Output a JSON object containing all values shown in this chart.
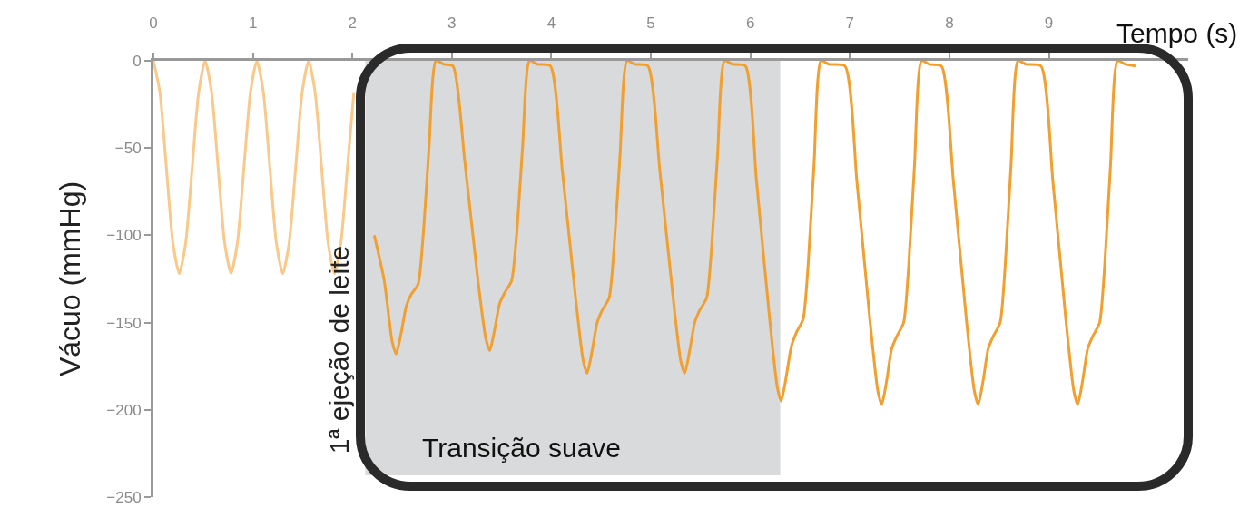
{
  "chart_data": {
    "type": "line",
    "xlabel": "Tempo (s)",
    "ylabel": "Vácuo (mmHg)",
    "xlim": [
      0,
      10.4
    ],
    "xticks": [
      0,
      1,
      2,
      3,
      4,
      5,
      6,
      7,
      8,
      9
    ],
    "ylim": [
      -250,
      0
    ],
    "yticks": [
      0,
      {
        "value": -50,
        "label": "−50"
      },
      {
        "value": -100,
        "label": "−100"
      },
      {
        "value": -150,
        "label": "−150"
      },
      {
        "value": -200,
        "label": "−200"
      },
      {
        "value": -250,
        "label": "−250"
      }
    ],
    "grid": false,
    "marker": "none",
    "line_style": "solid",
    "bands": [
      {
        "axis": "x",
        "from": 2.13,
        "to": 6.3,
        "label": "Transição suave",
        "color": "#d9dadb"
      }
    ],
    "annotations": [
      "1ª ejeção de leite"
    ],
    "series": [
      {
        "color": "#f9c98a",
        "x": [
          0,
          0.065,
          0.13,
          0.195,
          0.26,
          0.325,
          0.39,
          0.455,
          0.52,
          0.585,
          0.65,
          0.715,
          0.78,
          0.845,
          0.91,
          0.975,
          1.04,
          1.105,
          1.17,
          1.235,
          1.3,
          1.365,
          1.43,
          1.495,
          1.56,
          1.625,
          1.69,
          1.755,
          1.82,
          1.885,
          1.95,
          2.015
        ],
        "values": [
          0,
          -18,
          -61,
          -104,
          -122,
          -104,
          -61,
          -18,
          0,
          -18,
          -61,
          -104,
          -122,
          -104,
          -61,
          -18,
          0,
          -18,
          -61,
          -104,
          -122,
          -104,
          -61,
          -18,
          0,
          -18,
          -61,
          -104,
          -122,
          -104,
          -61,
          -18
        ]
      },
      {
        "color": "#f0a030",
        "x": [
          2.22,
          2.32,
          2.4,
          2.44,
          2.49,
          2.54,
          2.59,
          2.66,
          2.71,
          2.77,
          2.84,
          2.92,
          3.01,
          3.13,
          3.26,
          3.34,
          3.38,
          3.43,
          3.48,
          3.53,
          3.6,
          3.65,
          3.71,
          3.78,
          3.86,
          3.99,
          4.11,
          4.24,
          4.32,
          4.36,
          4.41,
          4.46,
          4.51,
          4.58,
          4.63,
          4.69,
          4.76,
          4.84,
          4.97,
          5.09,
          5.22,
          5.3,
          5.34,
          5.39,
          5.44,
          5.49,
          5.56,
          5.61,
          5.67,
          5.74,
          5.82,
          5.95,
          6.06,
          6.19,
          6.27,
          6.31,
          6.36,
          6.41,
          6.46,
          6.53,
          6.58,
          6.64,
          6.71,
          6.79,
          6.95,
          7.07,
          7.2,
          7.28,
          7.32,
          7.37,
          7.42,
          7.47,
          7.54,
          7.59,
          7.65,
          7.72,
          7.8,
          7.92,
          8.04,
          8.17,
          8.25,
          8.29,
          8.34,
          8.39,
          8.44,
          8.51,
          8.56,
          8.62,
          8.69,
          8.77,
          8.92,
          9.04,
          9.17,
          9.25,
          9.29,
          9.34,
          9.39,
          9.44,
          9.51,
          9.56,
          9.62,
          9.69,
          9.77,
          9.87
        ],
        "values": [
          -100,
          -126,
          -161,
          -168,
          -156,
          -141,
          -134,
          -128,
          -101,
          -50,
          0,
          -2,
          -3,
          -58,
          -125,
          -159,
          -166,
          -154,
          -139,
          -133,
          -126,
          -100,
          -50,
          0,
          -2,
          -3,
          -63,
          -134,
          -172,
          -179,
          -166,
          -150,
          -143,
          -136,
          -107,
          -54,
          0,
          -2,
          -3,
          -63,
          -134,
          -172,
          -179,
          -166,
          -150,
          -143,
          -136,
          -107,
          -54,
          0,
          -2,
          -3,
          -68,
          -146,
          -187,
          -195,
          -181,
          -164,
          -156,
          -148,
          -117,
          -59,
          0,
          -2,
          -3,
          -69,
          -148,
          -189,
          -197,
          -183,
          -165,
          -158,
          -150,
          -118,
          -59,
          0,
          -2,
          -3,
          -69,
          -148,
          -189,
          -197,
          -183,
          -165,
          -158,
          -150,
          -118,
          -59,
          0,
          -2,
          -3,
          -69,
          -148,
          -189,
          -197,
          -183,
          -165,
          -158,
          -150,
          -118,
          -59,
          0,
          -2,
          -3
        ]
      }
    ]
  }
}
